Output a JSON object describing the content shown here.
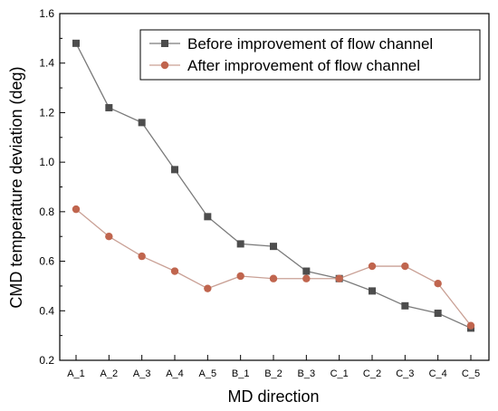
{
  "chart_data": {
    "type": "line",
    "xlabel": "MD direction",
    "ylabel": "CMD temperature deviation (deg)",
    "categories": [
      "A_1",
      "A_2",
      "A_3",
      "A_4",
      "A_5",
      "B_1",
      "B_2",
      "B_3",
      "C_1",
      "C_2",
      "C_3",
      "C_4",
      "C_5"
    ],
    "ylim": [
      0.2,
      1.6
    ],
    "yticks": [
      "0.2",
      "0.4",
      "0.6",
      "0.8",
      "1.0",
      "1.2",
      "1.4",
      "1.6"
    ],
    "grid": false,
    "legend_position": "top-right",
    "series": [
      {
        "name": "Before improvement of flow channel",
        "values": [
          1.48,
          1.22,
          1.16,
          0.97,
          0.78,
          0.67,
          0.66,
          0.56,
          0.53,
          0.48,
          0.42,
          0.39,
          0.33
        ],
        "line_color": "#7a7a7a",
        "marker_color": "#4d4d4d",
        "marker": "square"
      },
      {
        "name": "After improvement of flow channel",
        "values": [
          0.81,
          0.7,
          0.62,
          0.56,
          0.49,
          0.54,
          0.53,
          0.53,
          0.53,
          0.58,
          0.58,
          0.51,
          0.34
        ],
        "line_color": "#c9a095",
        "marker_color": "#c0654e",
        "marker": "circle"
      }
    ]
  }
}
